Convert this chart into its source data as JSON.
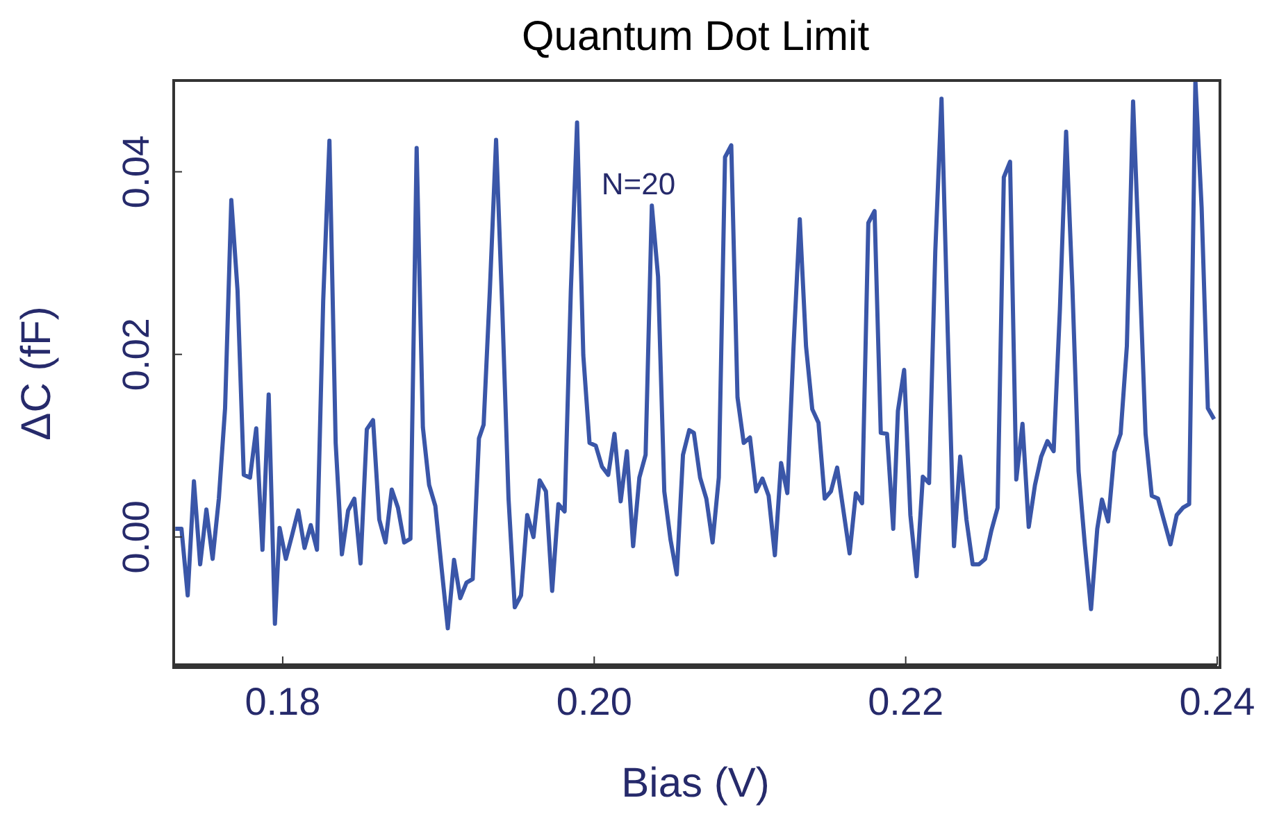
{
  "chart_data": {
    "type": "line",
    "title": "Quantum Dot Limit",
    "xlabel": "Bias (V)",
    "ylabel": "ΔC (fF)",
    "annotations": [
      "N=20"
    ],
    "xlim": [
      0.173,
      0.24
    ],
    "ylim": [
      -0.014,
      0.05
    ],
    "xticks": [
      {
        "value": 0.18,
        "label": "0.18"
      },
      {
        "value": 0.2,
        "label": "0.20"
      },
      {
        "value": 0.22,
        "label": "0.22"
      },
      {
        "value": 0.24,
        "label": "0.24"
      }
    ],
    "yticks": [
      {
        "value": 0,
        "label": "0.00"
      },
      {
        "value": 0.02,
        "label": "0.02"
      },
      {
        "value": 0.04,
        "label": "0.04"
      }
    ],
    "x": [
      0.1731,
      0.1735,
      0.1739,
      0.1743,
      0.1747,
      0.1751,
      0.1755,
      0.1759,
      0.1763,
      0.1767,
      0.1771,
      0.1775,
      0.1779,
      0.1783,
      0.1787,
      0.1791,
      0.1795,
      0.1798,
      0.1802,
      0.1806,
      0.181,
      0.1814,
      0.1818,
      0.1822,
      0.1826,
      0.183,
      0.1834,
      0.1838,
      0.1842,
      0.1846,
      0.185,
      0.1854,
      0.1858,
      0.1862,
      0.1866,
      0.187,
      0.1874,
      0.1878,
      0.1882,
      0.1886,
      0.189,
      0.1894,
      0.1898,
      0.1902,
      0.1906,
      0.191,
      0.1914,
      0.1918,
      0.1922,
      0.1926,
      0.1929,
      0.1933,
      0.1937,
      0.1941,
      0.1945,
      0.1949,
      0.1953,
      0.1957,
      0.1961,
      0.1965,
      0.1969,
      0.1973,
      0.1977,
      0.1981,
      0.1985,
      0.1989,
      0.1993,
      0.1997,
      0.2001,
      0.2005,
      0.2009,
      0.2013,
      0.2017,
      0.2021,
      0.2025,
      0.2029,
      0.2033,
      0.2037,
      0.2041,
      0.2045,
      0.2049,
      0.2053,
      0.2057,
      0.2061,
      0.2064,
      0.2068,
      0.2072,
      0.2076,
      0.208,
      0.2084,
      0.2088,
      0.2092,
      0.2096,
      0.21,
      0.2104,
      0.2108,
      0.2112,
      0.2116,
      0.212,
      0.2124,
      0.2128,
      0.2132,
      0.2136,
      0.214,
      0.2144,
      0.2148,
      0.2152,
      0.2156,
      0.216,
      0.2164,
      0.2168,
      0.2172,
      0.2176,
      0.218,
      0.2184,
      0.2188,
      0.2192,
      0.2195,
      0.2199,
      0.2203,
      0.2207,
      0.2211,
      0.2215,
      0.2219,
      0.2223,
      0.2227,
      0.2231,
      0.2235,
      0.2239,
      0.2243,
      0.2247,
      0.2251,
      0.2255,
      0.2259,
      0.2263,
      0.2267,
      0.2271,
      0.2275,
      0.2279,
      0.2283,
      0.2287,
      0.2291,
      0.2295,
      0.2299,
      0.2303,
      0.2307,
      0.2311,
      0.2315,
      0.2319,
      0.2323,
      0.2326,
      0.233,
      0.2334,
      0.2338,
      0.2342,
      0.2346,
      0.235,
      0.2354,
      0.2358,
      0.2362,
      0.2366,
      0.237,
      0.2374,
      0.2378,
      0.2382,
      0.2386,
      0.239,
      0.2394,
      0.2398
    ],
    "series": [
      {
        "color": "#3a56a8",
        "values": [
          0.0009,
          0.0009,
          -0.0064,
          0.0061,
          -0.003,
          0.003,
          -0.0024,
          0.0042,
          0.0141,
          0.0369,
          0.027,
          0.0068,
          0.0065,
          0.0119,
          -0.0014,
          0.0156,
          -0.0095,
          0.001,
          -0.0024,
          0.0002,
          0.0029,
          -0.0012,
          0.0013,
          -0.0014,
          0.0259,
          0.0434,
          0.0103,
          -0.0019,
          0.0029,
          0.0042,
          -0.0029,
          0.0118,
          0.0128,
          0.0019,
          -0.0006,
          0.0052,
          0.0032,
          -0.0006,
          -0.0002,
          0.0426,
          0.012,
          0.0057,
          0.0034,
          -0.0034,
          -0.01,
          -0.0025,
          -0.0067,
          -0.005,
          -0.0046,
          0.0108,
          0.0123,
          0.027,
          0.0435,
          0.0249,
          0.0042,
          -0.0077,
          -0.0064,
          0.0024,
          0.0,
          0.0062,
          0.005,
          -0.0059,
          0.0036,
          0.0028,
          0.027,
          0.0454,
          0.0199,
          0.0103,
          0.01,
          0.0077,
          0.0068,
          0.0113,
          0.0039,
          0.0094,
          -0.001,
          0.0065,
          0.009,
          0.0363,
          0.0285,
          0.005,
          -0.0003,
          -0.0041,
          0.009,
          0.0117,
          0.0114,
          0.0065,
          0.0042,
          -0.0006,
          0.0065,
          0.0416,
          0.0429,
          0.0153,
          0.0103,
          0.0109,
          0.005,
          0.0064,
          0.0045,
          -0.002,
          0.0081,
          0.0048,
          0.0209,
          0.0348,
          0.0209,
          0.014,
          0.0125,
          0.0042,
          0.005,
          0.0076,
          0.0029,
          -0.0018,
          0.0048,
          0.0037,
          0.0344,
          0.0357,
          0.0114,
          0.0113,
          0.0009,
          0.0138,
          0.0183,
          0.0024,
          -0.0043,
          0.0066,
          0.0059,
          0.0313,
          0.048,
          0.0224,
          -0.001,
          0.0088,
          0.0019,
          -0.003,
          -0.003,
          -0.0024,
          0.0007,
          0.0032,
          0.0394,
          0.0411,
          0.0063,
          0.0124,
          0.0011,
          0.0057,
          0.0088,
          0.0105,
          0.0094,
          0.0249,
          0.0444,
          0.0275,
          0.0072,
          -0.0008,
          -0.0079,
          0.0009,
          0.0041,
          0.0017,
          0.0093,
          0.0113,
          0.0209,
          0.0477,
          0.03,
          0.0113,
          0.0045,
          0.0042,
          0.0017,
          -0.0008,
          0.0024,
          0.0032,
          0.0036,
          0.05,
          0.0361,
          0.0141,
          0.0129
        ]
      }
    ]
  }
}
